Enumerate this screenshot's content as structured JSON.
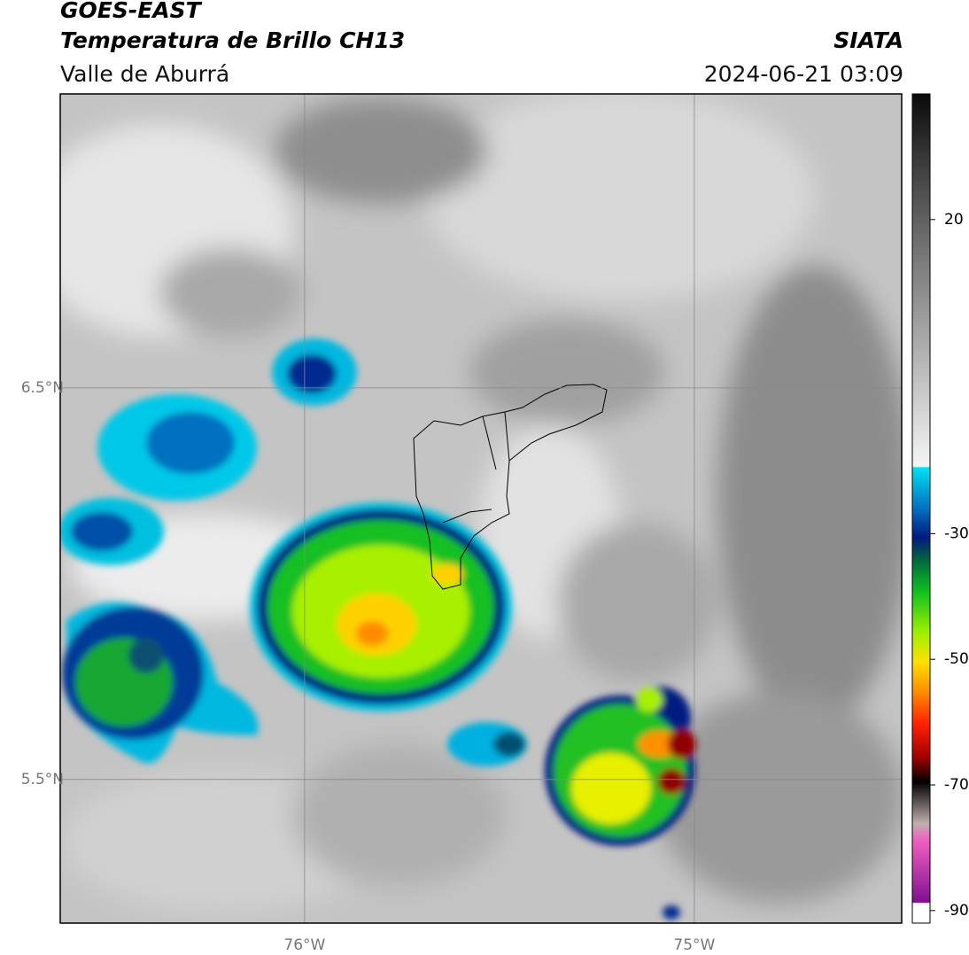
{
  "header": {
    "title": "GOES-EAST",
    "subtitle": "Temperatura de Brillo CH13",
    "region": "Valle de Aburrá",
    "source": "SIATA",
    "datetime": "2024-06-21 03:09"
  },
  "map": {
    "xlim": [
      -76.627,
      -74.468
    ],
    "ylim": [
      5.133,
      7.251
    ],
    "xticks": [
      {
        "value": -76,
        "label": "76°W"
      },
      {
        "value": -75,
        "label": "75°W"
      }
    ],
    "yticks": [
      {
        "value": 6.5,
        "label": "6.5°N"
      },
      {
        "value": 5.5,
        "label": "5.5°N"
      }
    ],
    "grid": true
  },
  "colorbar": {
    "lim": [
      -92,
      40
    ],
    "ticks": [
      20,
      -30,
      -50,
      -70,
      -90
    ]
  }
}
